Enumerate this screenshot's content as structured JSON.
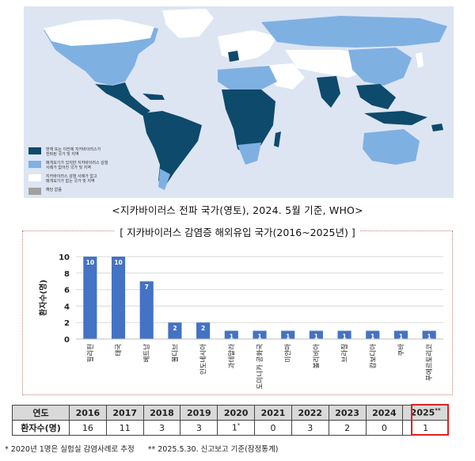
{
  "map": {
    "caption": "<지카바이러스 전파 국가(영토), 2024. 5월 기준, WHO>",
    "colors": {
      "ocean": "#dde5f3",
      "current": "#0d4a6b",
      "past": "#7fb0e2",
      "none": "#ffffff",
      "na": "#a0a0a0"
    },
    "legend": [
      {
        "key": "current",
        "lines": [
          "현재 또는 이전에 지카바이러스가",
          "전파된 국가 및 지역"
        ]
      },
      {
        "key": "past",
        "lines": [
          "매개모기가 있지만 지카바이러스 감염",
          "사례가 없어진 국가 및 지역"
        ]
      },
      {
        "key": "none",
        "lines": [
          "지카바이러스 감염 사례가 없고",
          "매개모기가 없는 국가 및 지역"
        ]
      },
      {
        "key": "na",
        "lines": [
          "해당 없음"
        ]
      }
    ]
  },
  "chart_data": {
    "type": "bar",
    "title": "[ 지카바이러스 감염증 해외유입 국가(2016~2025년) ]",
    "ylabel": "환자수(명)",
    "ylim": [
      0,
      10
    ],
    "yticks": [
      "0",
      "2",
      "4",
      "6",
      "8",
      "10"
    ],
    "categories": [
      "필리핀",
      "태국",
      "베트남",
      "몰디브",
      "인도네시아",
      "과테말라",
      "도미니카 공화국",
      "미얀마",
      "볼리비아",
      "브라질",
      "캄보디아",
      "쿠바",
      "푸에르토리코"
    ],
    "values": [
      10,
      10,
      7,
      2,
      2,
      1,
      1,
      1,
      1,
      1,
      1,
      1,
      1
    ],
    "bar_color": "#4472c4",
    "grid": true
  },
  "table": {
    "year_header": "연도",
    "count_header": "환자수(명)",
    "years": [
      "2016",
      "2017",
      "2018",
      "2019",
      "2020",
      "2021",
      "2022",
      "2023",
      "2024",
      "2025"
    ],
    "year_marks": [
      "",
      "",
      "",
      "",
      "",
      "",
      "",
      "",
      "",
      "**"
    ],
    "counts": [
      "16",
      "11",
      "3",
      "3",
      "1",
      "0",
      "3",
      "2",
      "0",
      "1"
    ],
    "count_marks": [
      "",
      "",
      "",
      "",
      "*",
      "",
      "",
      "",
      "",
      ""
    ]
  },
  "footnotes": [
    "* 2020년 1명은 실험실 감염사례로 추정",
    "** 2025.5.30. 신고보고 기준(잠정통계)"
  ]
}
